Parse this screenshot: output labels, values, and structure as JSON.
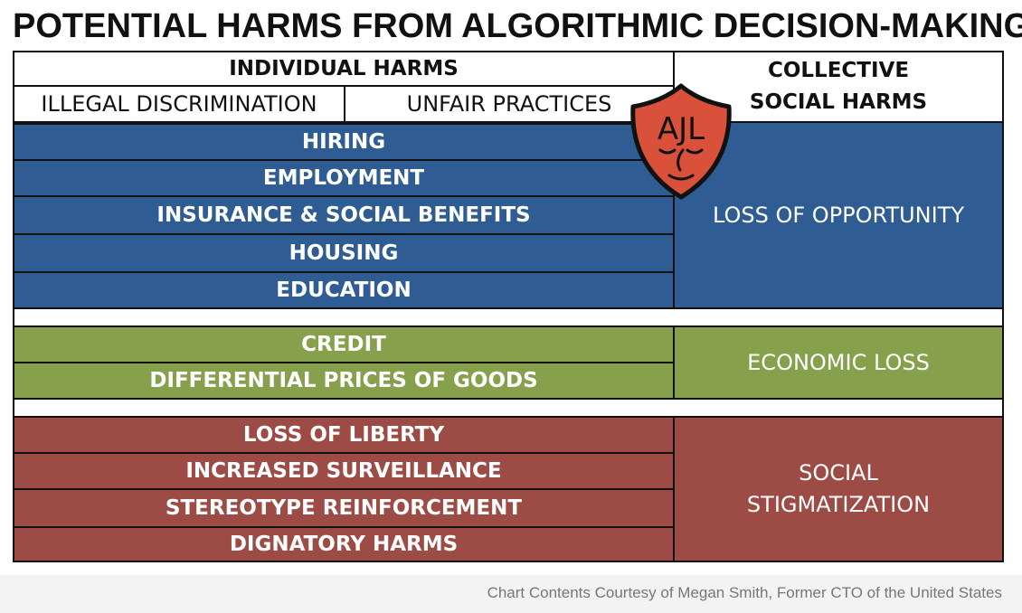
{
  "title": "POTENTIAL HARMS FROM ALGORITHMIC DECISION-MAKING",
  "header": {
    "individual": "INDIVIDUAL HARMS",
    "illegal": "ILLEGAL DISCRIMINATION",
    "unfair": "UNFAIR PRACTICES",
    "collective_line1": "COLLECTIVE",
    "collective_line2": "SOCIAL HARMS"
  },
  "logo": {
    "text": "AJL",
    "icon": "shield-face-logo",
    "color": "#d9513a"
  },
  "groups": {
    "opportunity": {
      "color": "#2f5c93",
      "items": [
        "HIRING",
        "EMPLOYMENT",
        "INSURANCE & SOCIAL BENEFITS",
        "HOUSING",
        "EDUCATION"
      ],
      "collective": "LOSS OF OPPORTUNITY"
    },
    "economic": {
      "color": "#86a04b",
      "items": [
        "CREDIT",
        "DIFFERENTIAL PRICES OF GOODS"
      ],
      "collective": "ECONOMIC LOSS"
    },
    "social": {
      "color": "#9d4b45",
      "items": [
        "LOSS OF LIBERTY",
        "INCREASED SURVEILLANCE",
        "STEREOTYPE REINFORCEMENT",
        "DIGNATORY HARMS"
      ],
      "collective_line1": "SOCIAL",
      "collective_line2": "STIGMATIZATION"
    }
  },
  "credit": "Chart Contents Courtesy of Megan Smith, Former CTO of the United States"
}
